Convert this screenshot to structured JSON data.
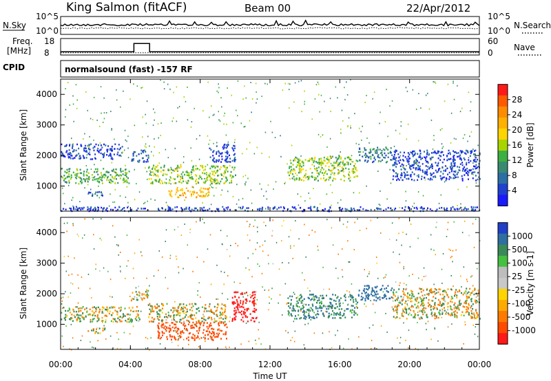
{
  "header": {
    "station": "King Salmon (fitACF)",
    "beam": "Beam 00",
    "date": "22/Apr/2012"
  },
  "noise_panel": {
    "left_label": "N.Sky",
    "left_ticks": [
      "10^5",
      "10^0"
    ],
    "right_ticks": [
      "10^5",
      "10^0"
    ],
    "right_label": "N.Search",
    "right_label_style": "dotted"
  },
  "freq_panel": {
    "left_label_line1": "Freq.",
    "left_label_line2": "[MHz]",
    "left_ticks": [
      "18",
      "8"
    ],
    "right_ticks": [
      "60",
      "0"
    ],
    "right_label": "Nave",
    "right_label_style": "dotted"
  },
  "cpid_panel": {
    "label": "CPID",
    "text": "normalsound (fast) -157 RF"
  },
  "x_axis": {
    "title": "Time UT",
    "ticks": [
      "00:00",
      "04:00",
      "08:00",
      "12:00",
      "16:00",
      "20:00",
      "00:00"
    ],
    "range_hours": [
      0,
      24
    ]
  },
  "power_panel": {
    "ylabel": "Slant Range [km]",
    "yticks": [
      "1000",
      "2000",
      "3000",
      "4000"
    ],
    "colorbar_label": "Power [dB]",
    "colorbar_ticks": [
      "28",
      "24",
      "20",
      "16",
      "12",
      "8",
      "4"
    ],
    "colorbar_colors": [
      "#ff1a1a",
      "#ff5a00",
      "#ff8c00",
      "#ffb000",
      "#ffd400",
      "#a8d400",
      "#3cb043",
      "#3a8a72",
      "#2c6fa5",
      "#2040d0",
      "#1a1aff"
    ]
  },
  "velocity_panel": {
    "ylabel": "Slant Range [km]",
    "yticks": [
      "1000",
      "2000",
      "3000",
      "4000"
    ],
    "colorbar_label": "Velocity [m s-1]",
    "colorbar_ticks": [
      "1000",
      "500",
      "100",
      "25",
      "-25",
      "-100",
      "-500",
      "-1000"
    ],
    "colorbar_colors": [
      "#2040c8",
      "#2e6fa0",
      "#3a8a58",
      "#46c040",
      "#bdbdbd",
      "#c8c8c8",
      "#ffd400",
      "#ffaa00",
      "#ff7a00",
      "#ff4a00",
      "#ff1a1a"
    ]
  },
  "chart_data": {
    "type": "heatmap",
    "title": "King Salmon (fitACF) Beam 00 22/Apr/2012",
    "xlabel": "Time UT",
    "ylabel": "Slant Range [km]",
    "xlim_hours": [
      0,
      24
    ],
    "ylim_km": [
      180,
      4500
    ],
    "panels": [
      {
        "name": "Power",
        "unit": "dB",
        "colorbar_range": [
          0,
          30
        ],
        "regions": [
          {
            "t": [
              0.0,
              4.0
            ],
            "r": [
              1100,
              1600
            ],
            "value": 12
          },
          {
            "t": [
              1.5,
              2.5
            ],
            "r": [
              700,
              900
            ],
            "value": 6
          },
          {
            "t": [
              0.0,
              3.5
            ],
            "r": [
              1900,
              2400
            ],
            "value": 4
          },
          {
            "t": [
              4.0,
              5.0
            ],
            "r": [
              1800,
              2200
            ],
            "value": 6
          },
          {
            "t": [
              5.0,
              10.0
            ],
            "r": [
              1100,
              1700
            ],
            "value": 14
          },
          {
            "t": [
              6.0,
              8.5
            ],
            "r": [
              650,
              1000
            ],
            "value": 20
          },
          {
            "t": [
              8.5,
              10.0
            ],
            "r": [
              1800,
              2400
            ],
            "value": 4
          },
          {
            "t": [
              13.0,
              17.0
            ],
            "r": [
              1200,
              2000
            ],
            "value": 14
          },
          {
            "t": [
              17.0,
              19.0
            ],
            "r": [
              1800,
              2300
            ],
            "value": 8
          },
          {
            "t": [
              19.0,
              24.0
            ],
            "r": [
              1200,
              2200
            ],
            "value": 4
          },
          {
            "t": [
              0.0,
              24.0
            ],
            "r": [
              200,
              350
            ],
            "value": 4
          }
        ]
      },
      {
        "name": "Velocity",
        "unit": "m s-1",
        "colorbar_range": [
          -1000,
          1000
        ],
        "regions": [
          {
            "t": [
              0.0,
              4.5
            ],
            "r": [
              1100,
              1600
            ],
            "value": 0
          },
          {
            "t": [
              1.5,
              2.5
            ],
            "r": [
              700,
              900
            ],
            "value": 0
          },
          {
            "t": [
              4.0,
              5.0
            ],
            "r": [
              1800,
              2200
            ],
            "value": 0
          },
          {
            "t": [
              5.0,
              9.5
            ],
            "r": [
              1100,
              1700
            ],
            "value": 0
          },
          {
            "t": [
              5.5,
              9.5
            ],
            "r": [
              500,
              1100
            ],
            "value": -200
          },
          {
            "t": [
              9.8,
              11.2
            ],
            "r": [
              1100,
              2100
            ],
            "value": -600
          },
          {
            "t": [
              13.0,
              17.0
            ],
            "r": [
              1200,
              2000
            ],
            "value": 60
          },
          {
            "t": [
              17.0,
              19.0
            ],
            "r": [
              1800,
              2300
            ],
            "value": 200
          },
          {
            "t": [
              19.0,
              24.0
            ],
            "r": [
              1200,
              2200
            ],
            "value": 0
          }
        ]
      }
    ],
    "noise_series": [
      {
        "name": "N.Sky",
        "style": "solid",
        "level": "high"
      },
      {
        "name": "N.Search",
        "style": "dotted",
        "level": "low"
      }
    ],
    "freq_series": [
      {
        "name": "Freq.",
        "unit": "MHz",
        "segments": [
          {
            "t": [
              0.0,
              4.2
            ],
            "value": 10
          },
          {
            "t": [
              4.2,
              5.1
            ],
            "value": 15
          },
          {
            "t": [
              5.1,
              24.0
            ],
            "value": 10
          }
        ]
      },
      {
        "name": "Nave",
        "style": "dotted",
        "value": 10
      }
    ]
  }
}
